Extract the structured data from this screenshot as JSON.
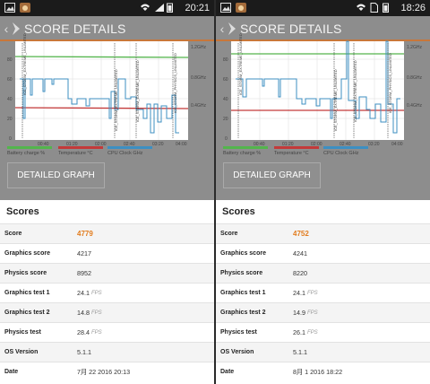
{
  "colors": {
    "accent": "#e27c1e",
    "battery": "#53b54c",
    "temperature": "#c33a3a",
    "cpu": "#3d8fc2",
    "header_bar": "#c8773a"
  },
  "panels": [
    {
      "statusbar": {
        "time": "20:21",
        "icons": [
          "picture-icon",
          "cat-app-icon",
          "wifi-icon",
          "signal-icon",
          "battery-icon"
        ]
      },
      "header": {
        "back_label": "‹",
        "title": "SCORE DETAILS"
      },
      "graph": {
        "y_ticks": [
          "80",
          "60",
          "40",
          "20",
          "0"
        ],
        "y_right_ticks": [
          "1.2GHz",
          "0.8GHz",
          "0.4GHz"
        ],
        "x_ticks": [
          "00:40",
          "01:20",
          "02:00",
          "02:40",
          "03:20",
          "04:00"
        ],
        "test_labels": [
          "ICE_STORM_EXTREME_UNLIMITED",
          "ICE_STORM_EXTREME_UNLIMITED",
          "ICE_STORM_EXTREME_UNLIMITED",
          "ICE_STORM_PHYSICS_UNLIMITED"
        ],
        "legend": [
          "Battery charge %",
          "Temperature °C",
          "CPU Clock GHz"
        ]
      },
      "detailed_graph_label": "DETAILED GRAPH",
      "scores_title": "Scores",
      "rows": [
        {
          "label": "Score",
          "value": "4779",
          "unit": ""
        },
        {
          "label": "Graphics score",
          "value": "4217",
          "unit": ""
        },
        {
          "label": "Physics score",
          "value": "8952",
          "unit": ""
        },
        {
          "label": "Graphics test 1",
          "value": "24.1",
          "unit": "FPS"
        },
        {
          "label": "Graphics test 2",
          "value": "14.8",
          "unit": "FPS"
        },
        {
          "label": "Physics test",
          "value": "28.4",
          "unit": "FPS"
        },
        {
          "label": "OS Version",
          "value": "5.1.1",
          "unit": ""
        },
        {
          "label": "Date",
          "value": "7月 22 2016 20:13",
          "unit": ""
        }
      ]
    },
    {
      "statusbar": {
        "time": "18:26",
        "icons": [
          "picture-icon",
          "cat-app-icon",
          "wifi-icon",
          "sim-icon",
          "battery-icon"
        ]
      },
      "header": {
        "back_label": "‹",
        "title": "SCORE DETAILS"
      },
      "graph": {
        "y_ticks": [
          "80",
          "60",
          "40",
          "20",
          "0"
        ],
        "y_right_ticks": [
          "1.2GHz",
          "0.8GHz",
          "0.4GHz"
        ],
        "x_ticks": [
          "00:40",
          "01:20",
          "02:00",
          "02:40",
          "03:20",
          "04:00"
        ],
        "test_labels": [
          "ICE_STORM_EXTREME_UNLIMITED",
          "ICE_STORM_EXTREME_UNLIMITED",
          "ICE_STORM_EXTREME_UNLIMITED",
          "ICE_STORM_PHYSICS_UNLIMITED"
        ],
        "legend": [
          "Battery charge %",
          "Temperature °C",
          "CPU Clock GHz"
        ]
      },
      "detailed_graph_label": "DETAILED GRAPH",
      "scores_title": "Scores",
      "rows": [
        {
          "label": "Score",
          "value": "4752",
          "unit": ""
        },
        {
          "label": "Graphics score",
          "value": "4241",
          "unit": ""
        },
        {
          "label": "Physics score",
          "value": "8220",
          "unit": ""
        },
        {
          "label": "Graphics test 1",
          "value": "24.1",
          "unit": "FPS"
        },
        {
          "label": "Graphics test 2",
          "value": "14.9",
          "unit": "FPS"
        },
        {
          "label": "Physics test",
          "value": "26.1",
          "unit": "FPS"
        },
        {
          "label": "OS Version",
          "value": "5.1.1",
          "unit": ""
        },
        {
          "label": "Date",
          "value": "8月 1 2016 18:22",
          "unit": ""
        }
      ]
    }
  ]
}
